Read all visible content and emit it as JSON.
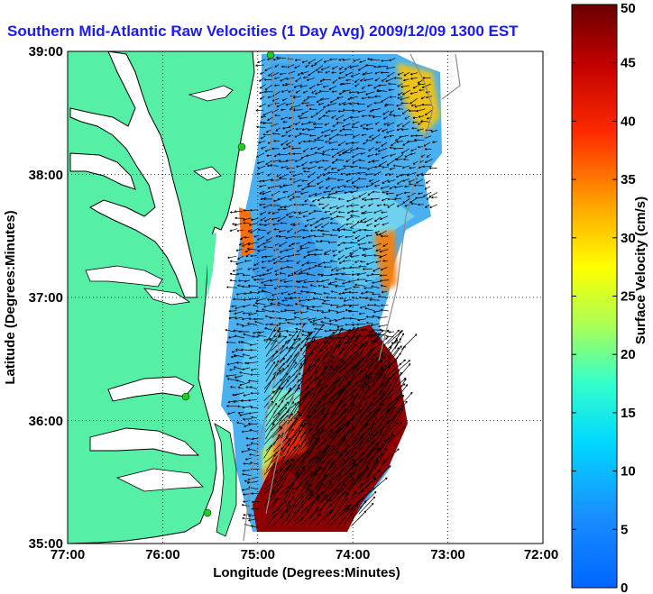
{
  "title": "Southern Mid-Atlantic Raw Velocities (1 Day Avg) 2009/12/09 1300 EST",
  "x_axis": {
    "label": "Longitude (Degrees:Minutes)",
    "ticks": [
      "77:00",
      "76:00",
      "75:00",
      "74:00",
      "73:00",
      "72:00"
    ]
  },
  "y_axis": {
    "label": "Latitude (Degrees:Minutes)",
    "ticks": [
      "39:00",
      "38:00",
      "37:00",
      "36:00",
      "35:00"
    ]
  },
  "colorbar": {
    "label": "Surface Velocity (cm/s)",
    "range": [
      0,
      50
    ],
    "ticks": [
      "0",
      "5",
      "10",
      "15",
      "20",
      "25",
      "30",
      "35",
      "40",
      "45",
      "50"
    ]
  },
  "map": {
    "lon_range": [
      -77,
      -72
    ],
    "lat_range": [
      35,
      39
    ],
    "grid": true,
    "colors": {
      "land": "#55f0a6",
      "water_bg": "#ffffff",
      "coast": "#000000",
      "bathymetry": "#8c8c8c",
      "station": "#22cc22",
      "vectors": "#000000"
    }
  },
  "stations": [
    "station-1",
    "station-2",
    "station-3",
    "station-4"
  ]
}
